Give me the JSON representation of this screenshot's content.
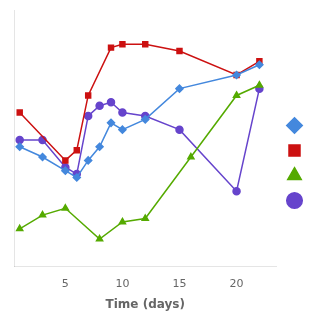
{
  "chart_data": {
    "type": "line",
    "xlabel": "Time (days)",
    "xlim": [
      0.5,
      23.5
    ],
    "xticks": [
      5,
      10,
      15,
      20
    ],
    "ylim": [
      20,
      95
    ],
    "tick_labels": "x",
    "grid": false,
    "legend": "right",
    "series": [
      {
        "color": "#4488DD",
        "marker": "diamond",
        "x": [
          1,
          3,
          5,
          6,
          7,
          8,
          9,
          10,
          12,
          15,
          20,
          22
        ],
        "values": [
          55,
          52,
          48,
          46,
          51,
          55,
          62,
          60,
          63,
          72,
          76,
          79
        ]
      },
      {
        "color": "#CC1111",
        "marker": "square",
        "x": [
          1,
          5,
          6,
          7,
          9,
          10,
          12,
          15,
          20,
          22
        ],
        "values": [
          65,
          51,
          54,
          70,
          84,
          85,
          85,
          83,
          76,
          80
        ]
      },
      {
        "color": "#55AA00",
        "marker": "triangle",
        "x": [
          1,
          3,
          5,
          8,
          10,
          12,
          16,
          20,
          22
        ],
        "values": [
          31,
          35,
          37,
          28,
          33,
          34,
          52,
          70,
          73
        ]
      },
      {
        "color": "#6644CC",
        "marker": "circle",
        "x": [
          1,
          3,
          5,
          6,
          7,
          8,
          9,
          10,
          12,
          15,
          20,
          22
        ],
        "values": [
          57,
          57,
          49,
          47,
          64,
          67,
          68,
          65,
          64,
          60,
          42,
          72
        ]
      }
    ]
  }
}
